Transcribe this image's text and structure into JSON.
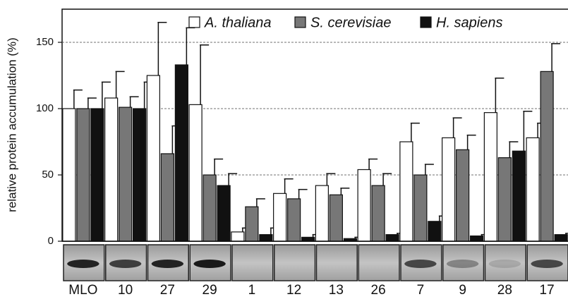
{
  "chart_data": {
    "type": "bar",
    "y_label": "relative protein accumulation (%)",
    "categories": [
      "MLO",
      "10",
      "27",
      "29",
      "1",
      "12",
      "13",
      "26",
      "7",
      "9",
      "28",
      "17"
    ],
    "series": [
      {
        "name": "A. thaliana",
        "color": "#ffffff",
        "values": [
          100,
          108,
          125,
          103,
          7,
          36,
          42,
          54,
          75,
          78,
          97,
          78
        ],
        "errors": [
          14,
          20,
          40,
          45,
          3,
          11,
          9,
          8,
          14,
          15,
          26,
          11
        ]
      },
      {
        "name": "S. cerevisiae",
        "color": "#777777",
        "values": [
          100,
          101,
          66,
          50,
          26,
          32,
          35,
          42,
          50,
          69,
          63,
          128
        ],
        "errors": [
          8,
          8,
          21,
          12,
          6,
          7,
          5,
          9,
          8,
          11,
          12,
          21
        ]
      },
      {
        "name": "H. sapiens",
        "color": "#111111",
        "values": [
          100,
          100,
          133,
          42,
          5,
          3,
          2,
          5,
          15,
          4,
          68,
          5
        ],
        "errors": [
          20,
          20,
          28,
          9,
          5,
          2,
          1,
          1,
          4,
          1,
          30,
          1
        ]
      }
    ],
    "ylim": [
      0,
      175
    ],
    "yticks": [
      0,
      50,
      100,
      150
    ],
    "grid": true
  }
}
